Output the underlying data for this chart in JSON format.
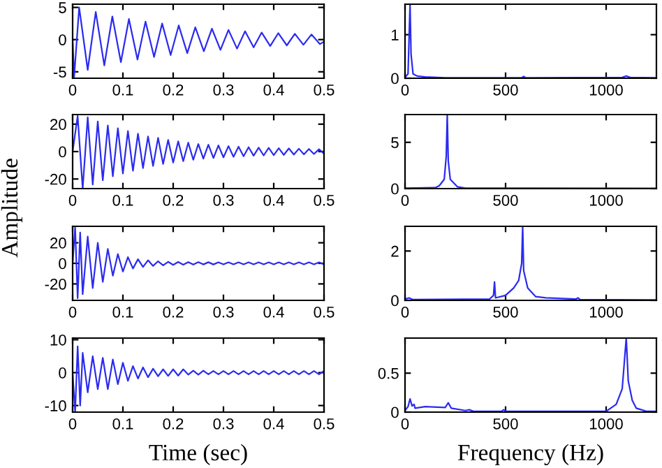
{
  "chart_data": [
    {
      "type": "line",
      "x": [
        0,
        0.003,
        0.013,
        0.03,
        0.046,
        0.063,
        0.079,
        0.096,
        0.112,
        0.129,
        0.145,
        0.162,
        0.178,
        0.195,
        0.211,
        0.228,
        0.244,
        0.261,
        0.277,
        0.294,
        0.31,
        0.327,
        0.343,
        0.36,
        0.376,
        0.393,
        0.409,
        0.426,
        0.442,
        0.459,
        0.475,
        0.492,
        0.5
      ],
      "series": [
        {
          "color": "#2b2bf0",
          "values": [
            0,
            -5.8,
            5,
            -4.7,
            4.3,
            -4,
            3.6,
            -3.5,
            3.2,
            -3.1,
            2.8,
            -2.7,
            2.5,
            -2.4,
            2.2,
            -2.1,
            1.9,
            -1.8,
            1.7,
            -1.6,
            1.5,
            -1.4,
            1.3,
            -1.2,
            1.1,
            -1.0,
            1.0,
            -0.9,
            0.9,
            -0.8,
            0.8,
            -0.7,
            -0.3
          ]
        }
      ],
      "xlim": [
        0,
        0.5
      ],
      "xticks": [
        0,
        0.1,
        0.2,
        0.3,
        0.4,
        0.5
      ],
      "ylim": [
        -6,
        5.5
      ],
      "yticks": [
        -5,
        0,
        5
      ],
      "grid": false,
      "legend": false
    },
    {
      "type": "line",
      "x": [
        0,
        15,
        25,
        30,
        40,
        60,
        100,
        200,
        580,
        590,
        600,
        1080,
        1100,
        1120,
        1250
      ],
      "series": [
        {
          "color": "#2b2bf0",
          "values": [
            0.02,
            0.1,
            1.7,
            0.55,
            0.1,
            0.05,
            0.03,
            0.01,
            0.01,
            0.04,
            0.01,
            0.02,
            0.05,
            0.02,
            0.01
          ]
        }
      ],
      "xlim": [
        0,
        1250
      ],
      "xticks": [
        0,
        500,
        1000
      ],
      "ylim": [
        0,
        1.7
      ],
      "yticks": [
        0,
        1
      ],
      "grid": false,
      "legend": false
    },
    {
      "type": "line",
      "x": [
        0,
        0.01,
        0.02,
        0.03,
        0.04,
        0.05,
        0.06,
        0.07,
        0.08,
        0.09,
        0.1,
        0.11,
        0.12,
        0.13,
        0.14,
        0.15,
        0.16,
        0.17,
        0.18,
        0.19,
        0.2,
        0.21,
        0.22,
        0.23,
        0.24,
        0.25,
        0.26,
        0.27,
        0.28,
        0.29,
        0.3,
        0.31,
        0.32,
        0.33,
        0.34,
        0.35,
        0.36,
        0.37,
        0.38,
        0.39,
        0.4,
        0.41,
        0.42,
        0.43,
        0.44,
        0.45,
        0.46,
        0.47,
        0.48,
        0.49,
        0.5
      ],
      "series": [
        {
          "color": "#2b2bf0",
          "values": [
            0,
            26,
            -27,
            25,
            -24,
            22,
            -21,
            19,
            -18,
            17,
            -16,
            15,
            -14,
            13,
            -12,
            11,
            -10.5,
            10,
            -9,
            8.5,
            -8,
            7.5,
            -7,
            6.5,
            -6,
            5.5,
            -5.2,
            5,
            -4.7,
            4.5,
            -4.2,
            4,
            -3.8,
            3.6,
            -3.4,
            3.2,
            -3,
            2.9,
            -2.8,
            2.7,
            -2.6,
            2.5,
            -2.4,
            2.3,
            -2.2,
            2.1,
            -2,
            1.9,
            -1.8,
            1.7,
            -1.5
          ]
        }
      ],
      "xlim": [
        0,
        0.5
      ],
      "xticks": [
        0,
        0.1,
        0.2,
        0.3,
        0.4,
        0.5
      ],
      "ylim": [
        -27,
        27
      ],
      "yticks": [
        -20,
        0,
        20
      ],
      "grid": false,
      "legend": false
    },
    {
      "type": "line",
      "x": [
        0,
        150,
        170,
        195,
        205,
        210,
        215,
        225,
        260,
        300,
        1250
      ],
      "series": [
        {
          "color": "#2b2bf0",
          "values": [
            0.05,
            0.1,
            0.3,
            1,
            3.5,
            8,
            3,
            1,
            0.2,
            0.05,
            0.02
          ]
        }
      ],
      "xlim": [
        0,
        1250
      ],
      "xticks": [
        0,
        500,
        1000
      ],
      "ylim": [
        0,
        8
      ],
      "yticks": [
        0,
        5
      ],
      "grid": false,
      "legend": false
    },
    {
      "type": "line",
      "ylabel": "Amplitude",
      "x": [
        0,
        0.005,
        0.01,
        0.015,
        0.02,
        0.03,
        0.04,
        0.05,
        0.06,
        0.07,
        0.08,
        0.09,
        0.1,
        0.11,
        0.12,
        0.13,
        0.14,
        0.15,
        0.16,
        0.17,
        0.18,
        0.19,
        0.2,
        0.21,
        0.22,
        0.23,
        0.24,
        0.25,
        0.26,
        0.27,
        0.28,
        0.29,
        0.3,
        0.31,
        0.32,
        0.33,
        0.34,
        0.35,
        0.36,
        0.37,
        0.38,
        0.39,
        0.4,
        0.41,
        0.42,
        0.43,
        0.44,
        0.45,
        0.46,
        0.47,
        0.48,
        0.49,
        0.5
      ],
      "series": [
        {
          "color": "#2b2bf0",
          "values": [
            0,
            35,
            -34,
            30,
            -30,
            26,
            -24,
            20,
            -18,
            14,
            -12,
            9,
            -8,
            6,
            -5,
            4,
            -3.5,
            3,
            -2.5,
            2,
            -2,
            1.5,
            -1.5,
            1.3,
            -1.3,
            1.2,
            -1.2,
            1.2,
            -1.1,
            1.1,
            -1.1,
            1,
            -1,
            1,
            -1,
            1,
            -1,
            1,
            -1,
            1,
            -1,
            1,
            -1,
            1,
            -1,
            1,
            -1,
            1,
            -1,
            1,
            -1,
            1,
            -1
          ]
        }
      ],
      "xlim": [
        0,
        0.5
      ],
      "xticks": [
        0,
        0.1,
        0.2,
        0.3,
        0.4,
        0.5
      ],
      "ylim": [
        -36,
        36
      ],
      "yticks": [
        -20,
        0,
        20
      ],
      "grid": false,
      "legend": false
    },
    {
      "type": "line",
      "x": [
        0,
        20,
        40,
        420,
        440,
        445,
        450,
        500,
        540,
        565,
        580,
        585,
        590,
        610,
        650,
        700,
        850,
        860,
        870,
        1250
      ],
      "series": [
        {
          "color": "#2b2bf0",
          "values": [
            0.05,
            0.1,
            0.03,
            0.05,
            0.2,
            0.75,
            0.1,
            0.2,
            0.5,
            0.8,
            1.5,
            3,
            1.2,
            0.5,
            0.15,
            0.1,
            0.05,
            0.1,
            0.03,
            0.02
          ]
        }
      ],
      "xlim": [
        0,
        1250
      ],
      "xticks": [
        0,
        500,
        1000
      ],
      "ylim": [
        0,
        3
      ],
      "yticks": [
        0,
        2
      ],
      "grid": false,
      "legend": false
    },
    {
      "type": "line",
      "xlabel": "Time (sec)",
      "x": [
        0,
        0.005,
        0.01,
        0.015,
        0.02,
        0.03,
        0.04,
        0.05,
        0.06,
        0.07,
        0.08,
        0.09,
        0.1,
        0.11,
        0.12,
        0.13,
        0.14,
        0.15,
        0.16,
        0.17,
        0.18,
        0.19,
        0.2,
        0.21,
        0.22,
        0.23,
        0.24,
        0.25,
        0.26,
        0.27,
        0.28,
        0.29,
        0.3,
        0.31,
        0.32,
        0.33,
        0.34,
        0.35,
        0.36,
        0.37,
        0.38,
        0.39,
        0.4,
        0.41,
        0.42,
        0.43,
        0.44,
        0.45,
        0.46,
        0.47,
        0.48,
        0.49,
        0.5
      ],
      "series": [
        {
          "color": "#2b2bf0",
          "values": [
            0,
            -12,
            8,
            -10,
            6,
            -6,
            5,
            -5,
            4.5,
            -5,
            4,
            -3.5,
            3,
            -2.5,
            2,
            -1.8,
            1.6,
            -1.4,
            1.2,
            -1.1,
            1,
            -1,
            1,
            -0.9,
            1,
            -0.6,
            0.6,
            -0.6,
            0.6,
            -0.5,
            0.5,
            -0.5,
            0.5,
            -0.5,
            0.5,
            -0.5,
            0.5,
            -0.5,
            0.5,
            -0.5,
            0.5,
            -0.5,
            0.5,
            -0.5,
            0.5,
            -0.5,
            0.5,
            -0.5,
            0.5,
            -0.5,
            0.5,
            -0.5,
            0.5
          ]
        }
      ],
      "xlim": [
        0,
        0.5
      ],
      "xticks": [
        0,
        0.1,
        0.2,
        0.3,
        0.4,
        0.5
      ],
      "ylim": [
        -12,
        10.5
      ],
      "yticks": [
        -10,
        0,
        10
      ],
      "grid": false,
      "legend": false
    },
    {
      "type": "line",
      "xlabel": "Frequency (Hz)",
      "x": [
        0,
        15,
        25,
        35,
        45,
        50,
        100,
        200,
        215,
        230,
        300,
        320,
        340,
        480,
        490,
        500,
        1000,
        1050,
        1080,
        1100,
        1110,
        1130,
        1150,
        1200,
        1250
      ],
      "series": [
        {
          "color": "#2b2bf0",
          "values": [
            0.02,
            0.07,
            0.17,
            0.08,
            0.1,
            0.05,
            0.07,
            0.06,
            0.12,
            0.05,
            0.02,
            0.03,
            0.01,
            0.01,
            0.03,
            0.01,
            0.01,
            0.1,
            0.3,
            0.95,
            0.4,
            0.15,
            0.05,
            0.01,
            0.01
          ]
        }
      ],
      "xlim": [
        0,
        1250
      ],
      "xticks": [
        0,
        500,
        1000
      ],
      "ylim": [
        0,
        0.95
      ],
      "yticks": [
        0,
        0.5
      ],
      "grid": false,
      "legend": false
    }
  ]
}
